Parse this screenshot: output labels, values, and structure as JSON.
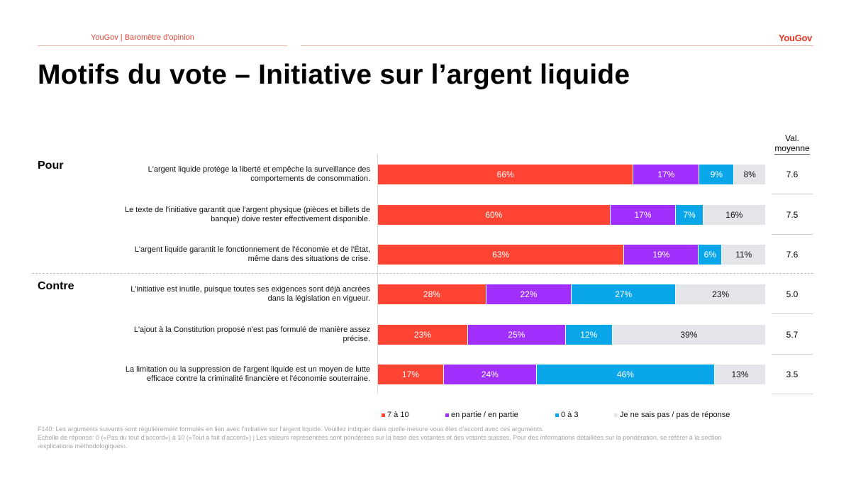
{
  "header": {
    "source_label": "YouGov | Baromètre d'opinion",
    "logo": "YouGov"
  },
  "title": "Motifs du vote – Initiative sur l’argent liquide",
  "sections": {
    "pour": "Pour",
    "contre": "Contre"
  },
  "avg_header": {
    "line1": "Val.",
    "line2": "moyenne"
  },
  "colors": {
    "c7a10": "#ff4433",
    "partie": "#a130ff",
    "c0a3": "#09a6ea",
    "nsp": "#e4e5e8"
  },
  "chart_data": {
    "type": "bar",
    "orientation": "horizontal",
    "stacked": true,
    "title": "Motifs du vote – Initiative sur l’argent liquide",
    "xlabel": "",
    "ylabel": "",
    "xlim": [
      0,
      100
    ],
    "unit": "%",
    "categories": [
      "L'argent liquide protège la liberté et empêche la surveillance des comportements de consommation.",
      "Le texte de l'initiative garantit que l'argent physique (pièces et billets de banque) doive rester effectivement disponible.",
      "L'argent liquide garantit le fonctionnement de l'économie et de l'État, même dans des situations de crise.",
      "L'initiative est inutile, puisque toutes ses exigences sont déjà ancrées dans la législation en vigueur.",
      "L'ajout à la Constitution proposé n'est pas formulé de manière assez précise.",
      "La limitation ou la suppression de l'argent liquide est un moyen de lutte efficace contre la criminalité financière et l'économie souterraine."
    ],
    "groups": [
      "Pour",
      "Pour",
      "Pour",
      "Contre",
      "Contre",
      "Contre"
    ],
    "series": [
      {
        "name": "7 à 10",
        "color": "#ff4433",
        "values": [
          66,
          60,
          63,
          28,
          23,
          17
        ]
      },
      {
        "name": "en partie / en partie",
        "color": "#a130ff",
        "values": [
          17,
          17,
          19,
          22,
          25,
          24
        ]
      },
      {
        "name": "0 à 3",
        "color": "#09a6ea",
        "values": [
          9,
          7,
          6,
          27,
          12,
          46
        ]
      },
      {
        "name": "Je ne sais pas / pas de réponse",
        "color": "#e4e5e8",
        "values": [
          8,
          16,
          11,
          23,
          39,
          13
        ]
      }
    ],
    "mean_values": [
      "7.6",
      "7.5",
      "7.6",
      "5.0",
      "5.7",
      "3.5"
    ],
    "legend_position": "bottom",
    "grid": false
  },
  "footnote": {
    "line1": "F140: Les arguments suivants sont régulièrement formulés en lien avec l'initiative sur l'argent liquide. Veuillez indiquer dans quelle mesure vous êtes d’accord avec ces arguments.",
    "line2": "Echelle de réponse: 0 («Pas du tout d'accord») à 10 («Tout à fait d'accord») | Les valeurs représentées sont pondérées sur la base des votantes et des votants suisses. Pour des informations détaillées sur la pondération, se référer à la section",
    "line3": "‹explications méthodologiques›."
  }
}
